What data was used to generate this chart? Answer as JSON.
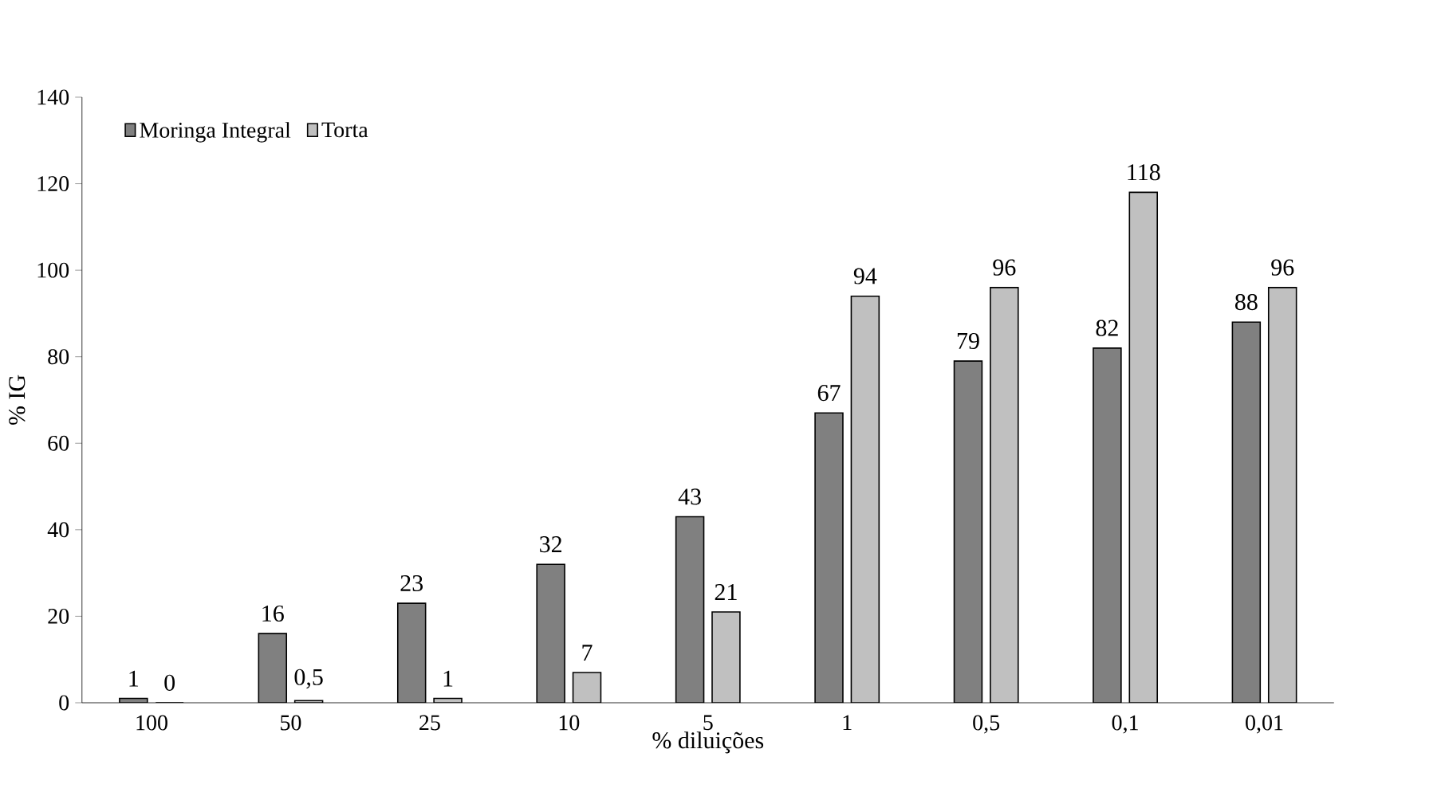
{
  "chart_data": {
    "type": "bar",
    "xlabel": "% diluições",
    "ylabel": "% IG",
    "categories": [
      "100",
      "50",
      "25",
      "10",
      "5",
      "1",
      "0,5",
      "0,1",
      "0,01"
    ],
    "series": [
      {
        "name": "Moringa Integral",
        "color": "#808080",
        "values": [
          1,
          16,
          23,
          32,
          43,
          67,
          79,
          82,
          88
        ],
        "value_labels": [
          "1",
          "16",
          "23",
          "32",
          "43",
          "67",
          "79",
          "82",
          "88"
        ]
      },
      {
        "name": "Torta",
        "color": "#c0c0c0",
        "values": [
          0,
          0.5,
          1,
          7,
          21,
          94,
          96,
          118,
          96
        ],
        "value_labels": [
          "0",
          "0,5",
          "1",
          "7",
          "21",
          "94",
          "96",
          "118",
          "96"
        ]
      }
    ],
    "ylim": [
      0,
      140
    ],
    "yticks": [
      0,
      20,
      40,
      60,
      80,
      100,
      120,
      140
    ],
    "grid": false,
    "legend": "top left"
  }
}
